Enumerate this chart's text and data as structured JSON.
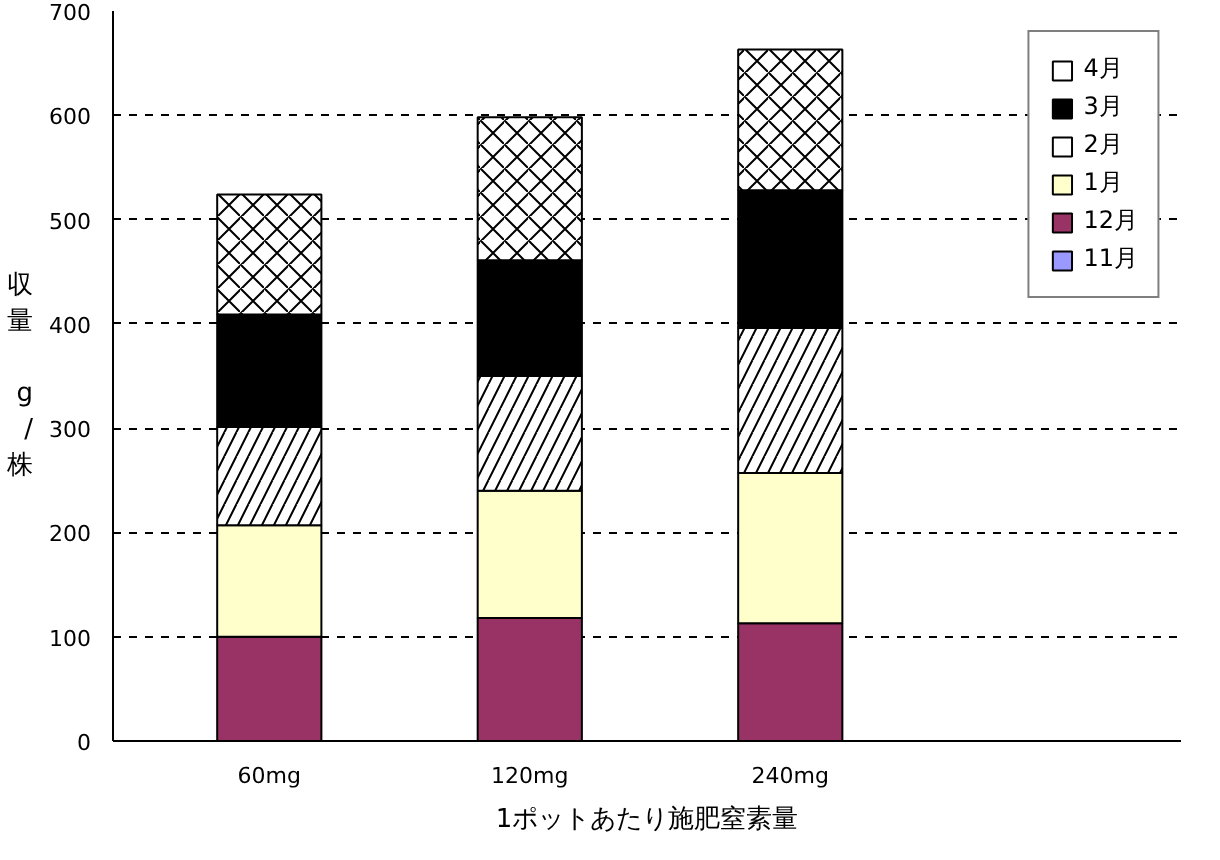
{
  "chart_data": {
    "type": "bar",
    "stacked": true,
    "xlabel": "1ポットあたり施肥窒素量",
    "ylabel": "収量 g/株",
    "categories": [
      "60mg",
      "120mg",
      "240mg"
    ],
    "series": [
      {
        "name": "11月",
        "color": "#9999ff",
        "values": [
          0,
          null,
          0
        ]
      },
      {
        "name": "12月",
        "color": "#993366",
        "values": [
          100,
          118,
          113
        ]
      },
      {
        "name": "1月",
        "color": "#ffffcc",
        "values": [
          107,
          122,
          144
        ]
      },
      {
        "name": "2月",
        "color": "#ffffff",
        "values": [
          94,
          110,
          139
        ]
      },
      {
        "name": "3月",
        "color": "#000000",
        "values": [
          108,
          111,
          132
        ]
      },
      {
        "name": "4月",
        "color": "#ffffff",
        "values": [
          115,
          137,
          135
        ]
      }
    ],
    "ylim": [
      0,
      700
    ],
    "yticks": [
      0,
      100,
      200,
      300,
      400,
      500,
      600,
      700
    ],
    "grid": "y",
    "legend": "right"
  }
}
